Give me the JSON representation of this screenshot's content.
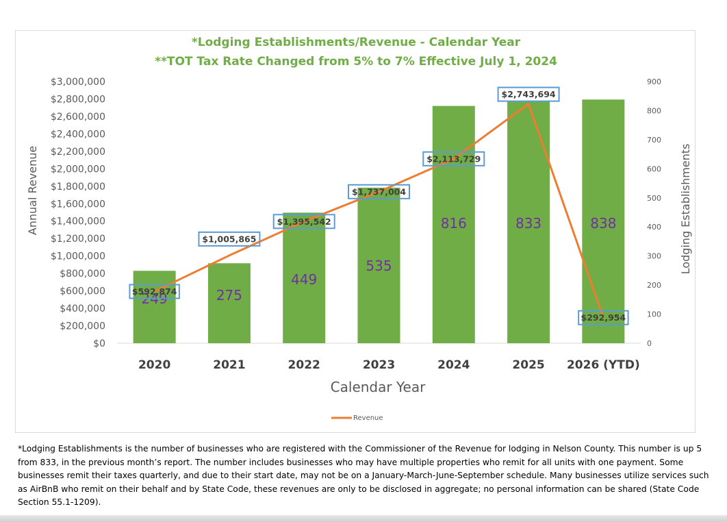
{
  "chart_data": {
    "type": "bar",
    "title": "*Lodging Establishments/Revenue - Calendar Year",
    "subtitle": "**TOT Tax Rate Changed from 5% to 7% Effective July 1, 2024",
    "categories": [
      "2020",
      "2021",
      "2022",
      "2023",
      "2024",
      "2025",
      "2026 (YTD)"
    ],
    "series": [
      {
        "name": "Lodging Establishments",
        "type": "bar",
        "axis": "right",
        "values": [
          249,
          275,
          449,
          535,
          816,
          833,
          838
        ],
        "labels": [
          "249",
          "275",
          "449",
          "535",
          "816",
          "833",
          "838"
        ],
        "color": "#70ad47"
      },
      {
        "name": "Revenue",
        "type": "line",
        "axis": "left",
        "values": [
          592874,
          1005865,
          1395542,
          1737004,
          2113729,
          2743694,
          292954
        ],
        "labels": [
          "$592,874",
          "$1,005,865",
          "$1,395,542",
          "$1,737,004",
          "$2,113,729",
          "$2,743,694",
          "$292,954"
        ],
        "color": "#ed7d31"
      }
    ],
    "xlabel": "Calendar Year",
    "ylabel": "Annual Revenue",
    "y2label": "Lodging Establishments",
    "ylim": [
      0,
      3000000
    ],
    "y2lim": [
      0,
      900
    ],
    "yticks": [
      "$0",
      "$200,000",
      "$400,000",
      "$600,000",
      "$800,000",
      "$1,000,000",
      "$1,200,000",
      "$1,400,000",
      "$1,600,000",
      "$1,800,000",
      "$2,000,000",
      "$2,200,000",
      "$2,400,000",
      "$2,600,000",
      "$2,800,000",
      "$3,000,000"
    ],
    "y2ticks": [
      "0",
      "100",
      "200",
      "300",
      "400",
      "500",
      "600",
      "700",
      "800",
      "900"
    ],
    "legend": {
      "position": "bottom",
      "entries": [
        "Revenue"
      ]
    },
    "grid": false
  },
  "footnote": "*Lodging Establishments is the number of businesses who are registered with the Commissioner of the Revenue for lodging in Nelson County. This number is up 5 from 833, in the previous month’s report. The number includes businesses who may have multiple properties who remit for all units with one payment. Some businesses remit their taxes quarterly, and due to their start date, may not be on a January-March-June-September schedule. Many businesses utilize services such as AirBnB who remit on their behalf and by State Code, these revenues are only to be disclosed in aggregate; no personal information can be shared (State Code Section 55.1-1209).",
  "colors": {
    "bar": "#70ad47",
    "line": "#ed7d31",
    "label_box": "#5b9bd5",
    "bar_label": "#7030a0",
    "title": "#70ad47"
  }
}
